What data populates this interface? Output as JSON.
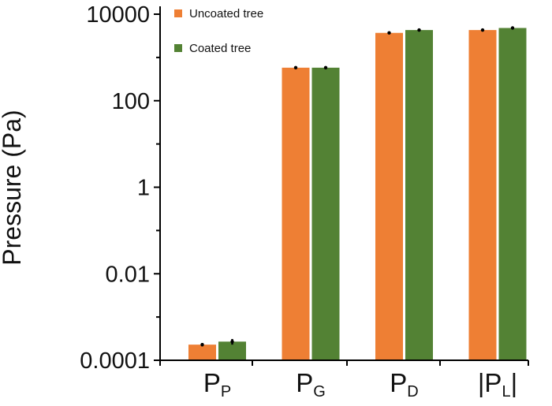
{
  "chart_data": {
    "type": "bar",
    "yscale": "log",
    "ylim": [
      0.0001,
      10000
    ],
    "ylabel": "Pressure (Pa)",
    "yticks": [
      {
        "value": 10000,
        "label": "10000"
      },
      {
        "value": 100,
        "label": "100"
      },
      {
        "value": 1,
        "label": "1"
      },
      {
        "value": 0.01,
        "label": "0.01"
      },
      {
        "value": 0.0001,
        "label": "0.0001"
      }
    ],
    "categories": [
      {
        "main": "P",
        "sub": "P",
        "prefix": "",
        "suffix": ""
      },
      {
        "main": "P",
        "sub": "G",
        "prefix": "",
        "suffix": ""
      },
      {
        "main": "P",
        "sub": "D",
        "prefix": "",
        "suffix": ""
      },
      {
        "main": "P",
        "sub": "L",
        "prefix": "|",
        "suffix": "|"
      }
    ],
    "legend_position": "top-left",
    "series": [
      {
        "name": "Uncoated tree",
        "color": "#ee7f34",
        "values": [
          0.00023,
          580,
          3700,
          4300
        ],
        "errors": [
          2e-05,
          0,
          250,
          200
        ]
      },
      {
        "name": "Coated tree",
        "color": "#538234",
        "values": [
          0.00027,
          580,
          4300,
          4800
        ],
        "errors": [
          4e-05,
          0,
          300,
          250
        ]
      }
    ]
  }
}
